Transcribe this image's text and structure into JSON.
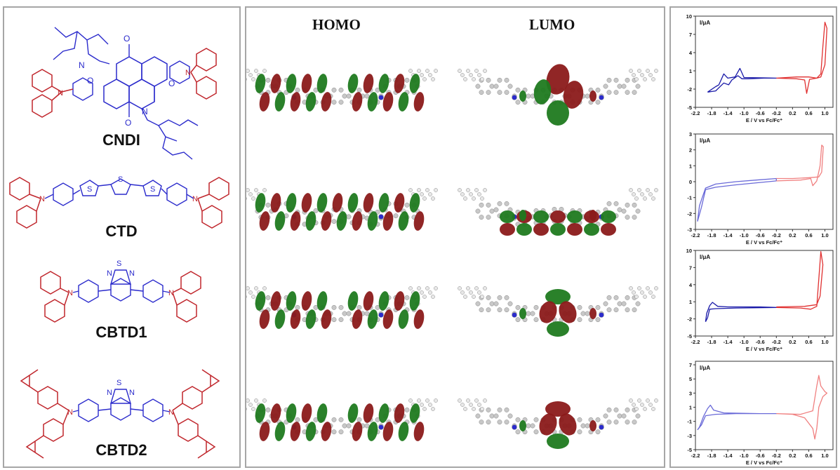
{
  "compounds": [
    "CNDI",
    "CTD",
    "CBTD1",
    "CBTD2"
  ],
  "heteroatoms": {
    "S": "S",
    "N": "N",
    "O": "O"
  },
  "orbitals": {
    "homo": "HOMO",
    "lumo": "LUMO"
  },
  "colors": {
    "carbazole": "#c0262c",
    "core": "#2b2bcc",
    "orbital_positive": "#8b1a1a",
    "orbital_negative": "#1f7a1f",
    "oxidation_curve": "#e03030",
    "reduction_curve": "#1a1aa8",
    "frame": "#a6a6a6"
  },
  "chart_data": [
    {
      "type": "line",
      "compound": "CNDI",
      "ylabel": "I/μA",
      "xlabel": "E / V vs Fc/Fc⁺",
      "x_ticks": [
        "-2.2",
        "-1.8",
        "-1.4",
        "-1.0",
        "-0.6",
        "-0.2",
        "0.2",
        "0.6",
        "1.0"
      ],
      "y_ticks": [
        "10",
        "7",
        "4",
        "1",
        "-2",
        "-5"
      ],
      "xlim": [
        -2.2,
        1.2
      ],
      "ylim": [
        -5,
        10
      ],
      "series": [
        {
          "values": [
            [
              -1.9,
              -2.5
            ],
            [
              -1.7,
              -2.3
            ],
            [
              -1.5,
              -1.0
            ],
            [
              -1.38,
              -1.3
            ],
            [
              -1.3,
              -0.5
            ],
            [
              -1.15,
              0.2
            ],
            [
              -1.05,
              -0.3
            ],
            [
              -0.9,
              -0.3
            ],
            [
              -0.5,
              -0.2
            ],
            [
              -0.2,
              -0.2
            ],
            [
              -0.5,
              -0.15
            ],
            [
              -1.0,
              -0.1
            ],
            [
              -1.1,
              1.4
            ],
            [
              -1.22,
              0.0
            ],
            [
              -1.4,
              -0.2
            ],
            [
              -1.5,
              0.5
            ],
            [
              -1.62,
              -1.3
            ],
            [
              -1.7,
              -1.6
            ],
            [
              -1.9,
              -2.5
            ]
          ]
        },
        {
          "values": [
            [
              -0.2,
              -0.2
            ],
            [
              0.3,
              -0.3
            ],
            [
              0.5,
              -0.5
            ],
            [
              0.55,
              -2.7
            ],
            [
              0.62,
              -0.4
            ],
            [
              0.8,
              -0.2
            ],
            [
              0.9,
              0.5
            ],
            [
              0.95,
              5.0
            ],
            [
              1.0,
              9.0
            ],
            [
              1.05,
              8.0
            ],
            [
              1.0,
              2.0
            ],
            [
              0.9,
              0.0
            ],
            [
              0.8,
              -0.2
            ],
            [
              0.6,
              0.0
            ],
            [
              0.3,
              0.0
            ],
            [
              -0.2,
              -0.2
            ]
          ]
        }
      ]
    },
    {
      "type": "line",
      "compound": "CTD",
      "ylabel": "I/μA",
      "xlabel": "E / V vs Fc/Fc⁺",
      "x_ticks": [
        "-2.2",
        "-1.8",
        "-1.4",
        "-1.0",
        "-0.6",
        "-0.2",
        "0.2",
        "0.6",
        "1.0"
      ],
      "y_ticks": [
        "3",
        "2",
        "1",
        "0",
        "-1",
        "-2",
        "-3"
      ],
      "xlim": [
        -2.2,
        1.2
      ],
      "ylim": [
        -3,
        3
      ],
      "series": [
        {
          "values": [
            [
              -2.15,
              -2.5
            ],
            [
              -2.05,
              -1.6
            ],
            [
              -1.95,
              -0.5
            ],
            [
              -1.7,
              -0.35
            ],
            [
              -1.2,
              -0.2
            ],
            [
              -0.6,
              -0.05
            ],
            [
              -0.2,
              0.05
            ],
            [
              -0.2,
              0.2
            ],
            [
              -0.7,
              0.1
            ],
            [
              -1.2,
              0.0
            ],
            [
              -1.7,
              -0.15
            ],
            [
              -1.95,
              -0.4
            ],
            [
              -2.1,
              -1.5
            ],
            [
              -2.15,
              -2.5
            ]
          ]
        },
        {
          "values": [
            [
              -0.2,
              0.05
            ],
            [
              0.4,
              0.1
            ],
            [
              0.65,
              0.2
            ],
            [
              0.7,
              -0.25
            ],
            [
              0.8,
              0.05
            ],
            [
              0.88,
              1.0
            ],
            [
              0.92,
              2.3
            ],
            [
              0.96,
              2.2
            ],
            [
              0.92,
              0.6
            ],
            [
              0.85,
              0.3
            ],
            [
              0.6,
              0.25
            ],
            [
              0.2,
              0.2
            ],
            [
              -0.2,
              0.2
            ]
          ]
        }
      ]
    },
    {
      "type": "line",
      "compound": "CBTD1",
      "ylabel": "I/μA",
      "xlabel": "E / V vs Fc/Fc⁺",
      "x_ticks": [
        "-2.2",
        "-1.8",
        "-1.4",
        "-1.0",
        "-0.6",
        "-0.2",
        "0.2",
        "0.6",
        "1.0"
      ],
      "y_ticks": [
        "10",
        "7",
        "4",
        "1",
        "-2",
        "-5"
      ],
      "xlim": [
        -2.2,
        1.2
      ],
      "ylim": [
        -5,
        10
      ],
      "series": [
        {
          "values": [
            [
              -1.95,
              -2.5
            ],
            [
              -1.9,
              -1.8
            ],
            [
              -1.85,
              -0.3
            ],
            [
              -1.7,
              -0.2
            ],
            [
              -1.2,
              -0.1
            ],
            [
              -0.2,
              0.0
            ],
            [
              -0.6,
              0.1
            ],
            [
              -1.4,
              0.1
            ],
            [
              -1.65,
              0.2
            ],
            [
              -1.78,
              0.9
            ],
            [
              -1.85,
              0.3
            ],
            [
              -1.92,
              -1.0
            ],
            [
              -1.95,
              -2.5
            ]
          ]
        },
        {
          "values": [
            [
              -0.2,
              0.0
            ],
            [
              0.4,
              -0.1
            ],
            [
              0.65,
              -0.3
            ],
            [
              0.8,
              0.2
            ],
            [
              0.85,
              5.0
            ],
            [
              0.9,
              9.8
            ],
            [
              0.95,
              7.5
            ],
            [
              0.88,
              2.0
            ],
            [
              0.8,
              0.5
            ],
            [
              0.5,
              0.2
            ],
            [
              -0.2,
              0.1
            ]
          ]
        }
      ]
    },
    {
      "type": "line",
      "compound": "CBTD2",
      "ylabel": "I/μA",
      "xlabel": "E / V vs Fc/Fc⁺",
      "x_ticks": [
        "-2.2",
        "-1.8",
        "-1.4",
        "-1.0",
        "-0.6",
        "-0.2",
        "0.2",
        "0.6",
        "1.0"
      ],
      "y_ticks": [
        "7",
        "5",
        "3",
        "1",
        "-1",
        "-3",
        "-5"
      ],
      "xlim": [
        -2.2,
        1.2
      ],
      "ylim": [
        -5,
        7.5
      ],
      "series": [
        {
          "values": [
            [
              -2.15,
              -2.2
            ],
            [
              -2.05,
              -1.5
            ],
            [
              -1.95,
              -0.2
            ],
            [
              -1.7,
              0.0
            ],
            [
              -1.2,
              0.1
            ],
            [
              -0.2,
              0.1
            ],
            [
              -0.6,
              0.1
            ],
            [
              -1.5,
              0.2
            ],
            [
              -1.75,
              0.6
            ],
            [
              -1.83,
              1.3
            ],
            [
              -1.9,
              0.8
            ],
            [
              -2.0,
              -0.3
            ],
            [
              -2.1,
              -1.8
            ],
            [
              -2.15,
              -2.2
            ]
          ]
        },
        {
          "values": [
            [
              -0.2,
              0.1
            ],
            [
              0.4,
              0.0
            ],
            [
              0.7,
              0.5
            ],
            [
              0.8,
              4.0
            ],
            [
              0.85,
              5.5
            ],
            [
              0.9,
              4.0
            ],
            [
              1.0,
              3.2
            ],
            [
              1.05,
              3.0
            ],
            [
              0.95,
              2.5
            ],
            [
              0.85,
              1.0
            ],
            [
              0.8,
              -2.0
            ],
            [
              0.75,
              -3.5
            ],
            [
              0.7,
              -2.0
            ],
            [
              0.5,
              -0.5
            ],
            [
              0.2,
              0.0
            ],
            [
              -0.2,
              0.1
            ]
          ]
        }
      ]
    }
  ]
}
